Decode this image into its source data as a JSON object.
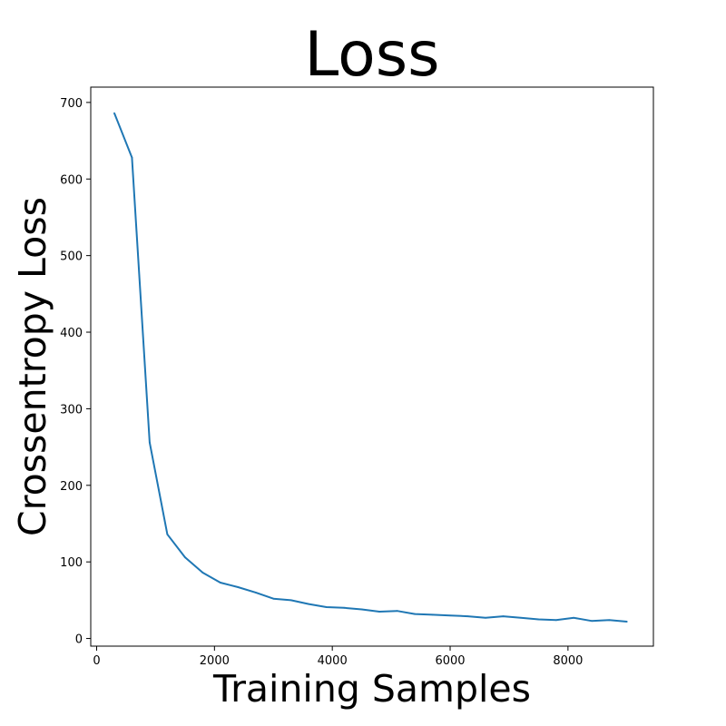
{
  "chart_data": {
    "type": "line",
    "title": "Loss",
    "xlabel": "Training Samples",
    "ylabel": "Crossentropy Loss",
    "xlim": [
      -100,
      9450
    ],
    "ylim": [
      -10,
      720
    ],
    "xticks": [
      0,
      2000,
      4000,
      6000,
      8000
    ],
    "yticks": [
      0,
      100,
      200,
      300,
      400,
      500,
      600,
      700
    ],
    "grid": false,
    "line_color": "#1f77b4",
    "series": [
      {
        "x": [
          300,
          600,
          900,
          1200,
          1500,
          1800,
          2100,
          2400,
          2700,
          3000,
          3300,
          3600,
          3900,
          4200,
          4500,
          4800,
          5100,
          5400,
          5700,
          6000,
          6300,
          6600,
          6900,
          7200,
          7500,
          7800,
          8100,
          8400,
          8700,
          9000
        ],
        "y": [
          686,
          628,
          256,
          136,
          106,
          86,
          73,
          67,
          60,
          52,
          50,
          45,
          41,
          40,
          38,
          35,
          36,
          32,
          31,
          30,
          29,
          27,
          29,
          27,
          25,
          24,
          27,
          23,
          24,
          22
        ]
      }
    ]
  }
}
